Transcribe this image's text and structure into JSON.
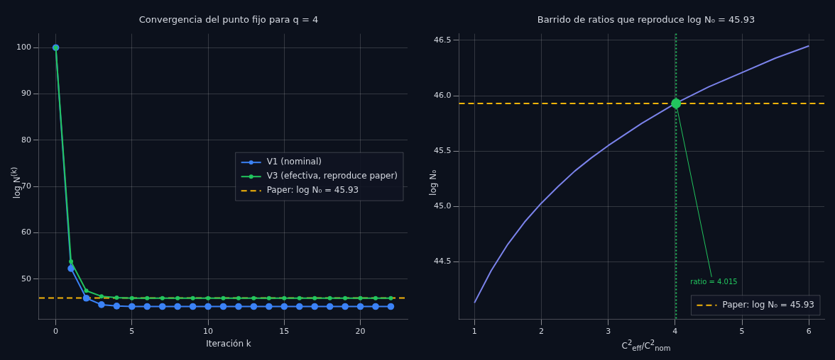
{
  "chart_data": [
    {
      "type": "line",
      "title": "Convergencia del punto fijo para q = 4",
      "xlabel": "Iteración k",
      "ylabel": "log N$^{(k)}$",
      "x": [
        0,
        1,
        2,
        3,
        4,
        5,
        6,
        7,
        8,
        9,
        10,
        11,
        12,
        13,
        14,
        15,
        16,
        17,
        18,
        19,
        20,
        21,
        22
      ],
      "series": [
        {
          "name": "V1 (nominal)",
          "color": "#3b82f6",
          "values": [
            100,
            52.3,
            45.9,
            44.5,
            44.2,
            44.1,
            44.1,
            44.1,
            44.1,
            44.1,
            44.1,
            44.1,
            44.1,
            44.1,
            44.1,
            44.1,
            44.1,
            44.1,
            44.1,
            44.1,
            44.1,
            44.1,
            44.1
          ]
        },
        {
          "name": "V3 (efectiva, reproduce paper)",
          "color": "#22c55e",
          "values": [
            100,
            53.8,
            47.5,
            46.3,
            46.0,
            45.9,
            45.9,
            45.9,
            45.9,
            45.9,
            45.9,
            45.9,
            45.9,
            45.9,
            45.9,
            45.9,
            45.9,
            45.9,
            45.9,
            45.9,
            45.9,
            45.9,
            45.9
          ]
        }
      ],
      "ref_lines": [
        {
          "axis": "y",
          "value": 45.93,
          "label": "Paper: log N₀ = 45.93",
          "color": "#f5b50a",
          "line_style": "dashed"
        }
      ],
      "xlim": [
        -1.1,
        23.1
      ],
      "xticks": [
        0,
        5,
        10,
        15,
        20
      ],
      "ylim": [
        41.3,
        103
      ],
      "yticks": [
        50,
        60,
        70,
        80,
        90,
        100
      ],
      "grid": true,
      "legend": "right",
      "marker": "circle",
      "line_style": "solid"
    },
    {
      "type": "line",
      "title": "Barrido de ratios que reproduce log N₀ = 45.93",
      "xlabel": "C$^{2}$$_{eff}$/C$^{2}$$_{nom}$",
      "ylabel": "log N₀",
      "series": [
        {
          "color": "#7b83eb",
          "x": [
            1,
            1.25,
            1.5,
            1.75,
            2,
            2.25,
            2.5,
            2.75,
            3,
            3.5,
            4,
            4.5,
            5,
            5.5,
            6
          ],
          "values": [
            44.13,
            44.42,
            44.66,
            44.86,
            45.03,
            45.18,
            45.32,
            45.44,
            45.55,
            45.75,
            45.93,
            46.08,
            46.21,
            46.34,
            46.45
          ]
        },
        {
          "type": "scatter",
          "color": "#22c55e",
          "x": [
            4.015
          ],
          "values": [
            45.93
          ]
        }
      ],
      "ref_lines": [
        {
          "axis": "y",
          "value": 45.93,
          "label": "Paper: log N₀ = 45.93",
          "color": "#f5b50a",
          "line_style": "dashed"
        },
        {
          "axis": "x",
          "value": 4.015,
          "color": "#22c55e",
          "line_style": "dotted"
        }
      ],
      "annotations": [
        {
          "text": "ratio = 4.015",
          "x": 4.015,
          "y": 45.93
        }
      ],
      "xlim": [
        0.77,
        6.23
      ],
      "xticks": [
        1,
        2,
        3,
        4,
        5,
        6
      ],
      "ylim": [
        43.98,
        46.56
      ],
      "yticks": [
        44.5,
        {
          "value": 45,
          "label": "45.0"
        },
        45.5,
        {
          "value": 46,
          "label": "46.0"
        },
        46.5
      ],
      "grid": true,
      "legend": "bottom right",
      "line_style": "solid"
    }
  ]
}
